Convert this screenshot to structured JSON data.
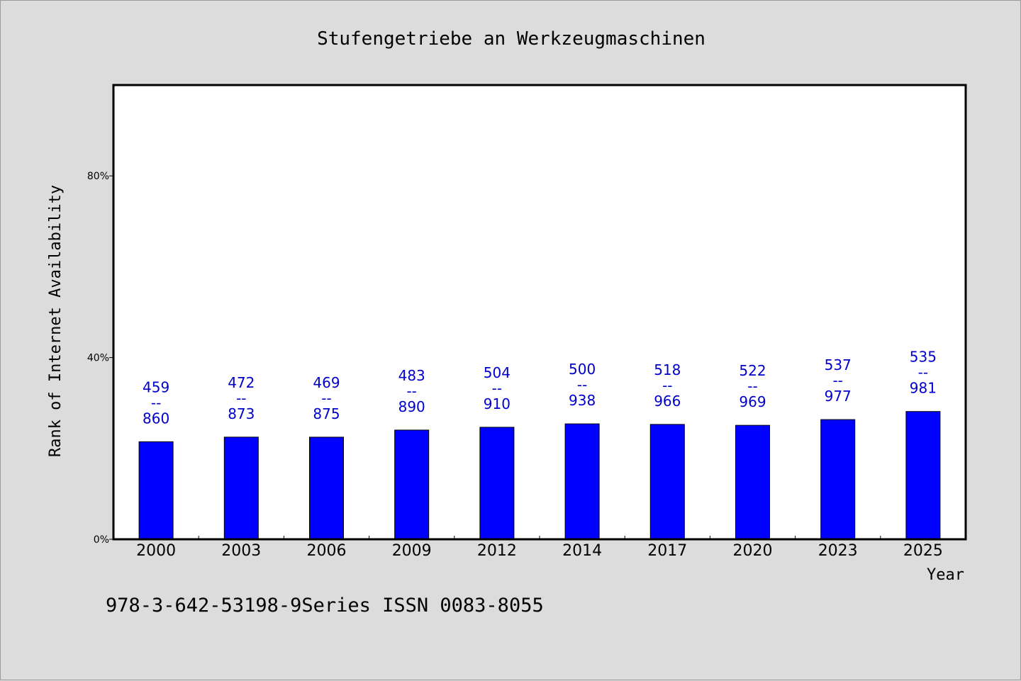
{
  "chart_data": {
    "type": "bar",
    "title": "Stufengetriebe an Werkzeugmaschinen",
    "xlabel": "Year",
    "ylabel": "Rank of Internet Availability",
    "categories": [
      "2000",
      "2003",
      "2006",
      "2009",
      "2012",
      "2014",
      "2017",
      "2020",
      "2023",
      "2025"
    ],
    "values": [
      0.2147,
      0.2249,
      0.2248,
      0.2404,
      0.2466,
      0.2541,
      0.2529,
      0.2509,
      0.2635,
      0.2813
    ],
    "data_labels": [
      {
        "top": "459",
        "sep": "--",
        "bottom": "860"
      },
      {
        "top": "472",
        "sep": "--",
        "bottom": "873"
      },
      {
        "top": "469",
        "sep": "--",
        "bottom": "875"
      },
      {
        "top": "483",
        "sep": "--",
        "bottom": "890"
      },
      {
        "top": "504",
        "sep": "--",
        "bottom": "910"
      },
      {
        "top": "500",
        "sep": "--",
        "bottom": "938"
      },
      {
        "top": "518",
        "sep": "--",
        "bottom": "966"
      },
      {
        "top": "522",
        "sep": "--",
        "bottom": "969"
      },
      {
        "top": "537",
        "sep": "--",
        "bottom": "977"
      },
      {
        "top": "535",
        "sep": "--",
        "bottom": "981"
      }
    ],
    "yticks": [
      {
        "value": 0,
        "label": "0%"
      },
      {
        "value": 0.4,
        "label": "40%"
      },
      {
        "value": 0.8,
        "label": "80%"
      }
    ],
    "ylim": [
      0,
      1.0
    ],
    "grid": false,
    "legend": "none",
    "bar_color": "#0000ff",
    "label_color": "#0000cc"
  },
  "footer": {
    "text": "978-3-642-53198-9Series ISSN 0083-8055"
  }
}
